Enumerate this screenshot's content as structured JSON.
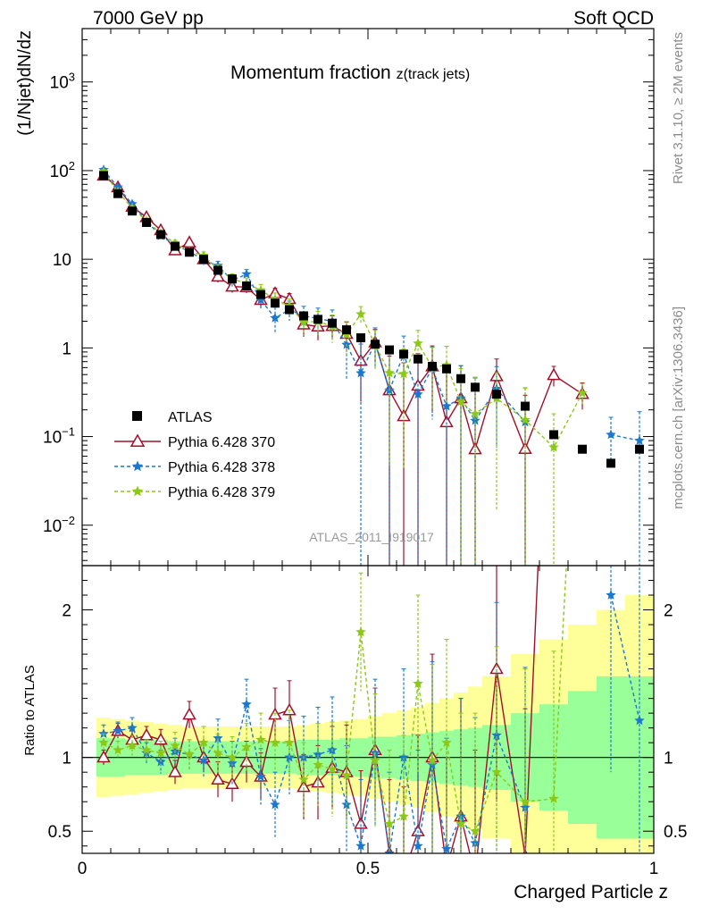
{
  "header": {
    "left": "7000 GeV pp",
    "right": "Soft QCD"
  },
  "side_labels": {
    "rivet": "Rivet 3.1.10, ≥ 2M events",
    "mcplots": "mcplots.cern.ch [arXiv:1306.3436]"
  },
  "watermark": "ATLAS_2011_I919017",
  "colors": {
    "atlas": "#000000",
    "p370": "#a0102a",
    "p378": "#1a78d0",
    "p379": "#8cc818",
    "band_green": "#99ff99",
    "band_yellow": "#ffff99"
  },
  "chart_data": {
    "type": "scatter",
    "title_main": "Momentum fraction ",
    "title_sub": "z(track jets)",
    "xlabel": "Charged Particle z",
    "ylabel_top": "(1/Njet)dN/dz",
    "ylabel_ratio": "Ratio to ATLAS",
    "xlim": [
      0,
      1
    ],
    "ylim_top": [
      0.0035,
      4000
    ],
    "y_scale_top": "log",
    "ylim_ratio": [
      0.35,
      2.3
    ],
    "x_ticks": [
      0,
      0.5,
      1
    ],
    "x_tick_labels": [
      "0",
      "0.5",
      "1"
    ],
    "top_tick_labels": [
      {
        "v": 0.01,
        "base": "10",
        "exp": "−2"
      },
      {
        "v": 0.1,
        "base": "10",
        "exp": "−1"
      },
      {
        "v": 1,
        "base": "1",
        "exp": ""
      },
      {
        "v": 10,
        "base": "10",
        "exp": ""
      },
      {
        "v": 100,
        "base": "10",
        "exp": "2"
      },
      {
        "v": 1000,
        "base": "10",
        "exp": "3"
      }
    ],
    "ratio_ticks": [
      0.5,
      1,
      2
    ],
    "ratio_tick_labels": [
      "0.5",
      "1",
      "2"
    ],
    "legend": [
      "ATLAS",
      "Pythia 6.428 370",
      "Pythia 6.428 378",
      "Pythia 6.428 379"
    ],
    "legend_position": "lower-left",
    "x": [
      0.0375,
      0.0625,
      0.0875,
      0.1125,
      0.1375,
      0.1625,
      0.1875,
      0.2125,
      0.2375,
      0.2625,
      0.2875,
      0.3125,
      0.3375,
      0.3625,
      0.3875,
      0.4125,
      0.4375,
      0.4625,
      0.4875,
      0.5125,
      0.5375,
      0.5625,
      0.5875,
      0.6125,
      0.6375,
      0.6625,
      0.6875,
      0.725,
      0.775,
      0.825,
      0.875,
      0.925,
      0.975
    ],
    "band_edges": [
      0.025,
      0.05,
      0.075,
      0.1,
      0.125,
      0.15,
      0.175,
      0.2,
      0.225,
      0.25,
      0.275,
      0.3,
      0.325,
      0.35,
      0.375,
      0.4,
      0.425,
      0.45,
      0.475,
      0.5,
      0.525,
      0.55,
      0.575,
      0.6,
      0.625,
      0.65,
      0.675,
      0.7,
      0.75,
      0.8,
      0.85,
      0.9,
      0.95,
      1.0
    ],
    "atlas": [
      88,
      55,
      35,
      26,
      19,
      14,
      12,
      10,
      7.5,
      6.0,
      5.0,
      4.0,
      3.2,
      2.7,
      2.3,
      2.1,
      1.9,
      1.6,
      1.3,
      1.1,
      0.95,
      0.85,
      0.75,
      0.62,
      0.58,
      0.45,
      0.36,
      0.3,
      0.22,
      0.105,
      0.072,
      0.05,
      0.072
    ],
    "band_inner": [
      0.13,
      0.13,
      0.12,
      0.12,
      0.12,
      0.11,
      0.11,
      0.11,
      0.11,
      0.11,
      0.11,
      0.11,
      0.11,
      0.11,
      0.12,
      0.12,
      0.12,
      0.13,
      0.13,
      0.14,
      0.14,
      0.15,
      0.16,
      0.17,
      0.18,
      0.19,
      0.2,
      0.22,
      0.3,
      0.36,
      0.45,
      0.55,
      0.55
    ],
    "band_outer": [
      0.27,
      0.26,
      0.25,
      0.24,
      0.23,
      0.22,
      0.21,
      0.21,
      0.21,
      0.21,
      0.21,
      0.21,
      0.21,
      0.21,
      0.22,
      0.23,
      0.24,
      0.25,
      0.26,
      0.28,
      0.3,
      0.32,
      0.34,
      0.37,
      0.4,
      0.44,
      0.48,
      0.55,
      0.7,
      0.8,
      0.9,
      1.0,
      1.1
    ],
    "series": [
      {
        "name": "Pythia 6.428 370",
        "ratio": [
          1.0,
          1.18,
          1.12,
          1.15,
          1.12,
          0.9,
          1.29,
          1.0,
          0.85,
          0.82,
          0.97,
          0.87,
          1.29,
          1.32,
          0.8,
          0.83,
          0.93,
          0.9,
          0.55,
          1.05,
          0.35,
          0.2,
          0.5,
          1.0,
          0.25,
          0.6,
          0.2,
          1.6,
          0.33,
          4.7,
          4.2,
          null,
          null
        ],
        "err": [
          0.05,
          0.05,
          0.06,
          0.06,
          0.07,
          0.08,
          0.09,
          0.1,
          0.12,
          0.12,
          0.14,
          0.16,
          0.18,
          0.2,
          0.22,
          0.25,
          0.28,
          0.32,
          0.36,
          0.42,
          0.5,
          0.6,
          0.65,
          0.7,
          0.75,
          0.8,
          0.85,
          0.9,
          1.0,
          1.2,
          1.4,
          null,
          null
        ]
      },
      {
        "name": "Pythia 6.428 378",
        "ratio": [
          1.16,
          1.18,
          1.2,
          1.03,
          0.97,
          1.04,
          1.02,
          0.98,
          1.13,
          0.96,
          1.36,
          0.87,
          0.68,
          1.0,
          1.0,
          1.02,
          1.05,
          0.68,
          0.4,
          1.03,
          0.35,
          1.0,
          0.4,
          0.95,
          0.38,
          0.6,
          0.42,
          1.15,
          0.66,
          null,
          null,
          2.1,
          1.25
        ],
        "err": [
          0.06,
          0.06,
          0.07,
          0.07,
          0.08,
          0.09,
          0.1,
          0.12,
          0.13,
          0.15,
          0.17,
          0.19,
          0.22,
          0.25,
          0.28,
          0.32,
          0.36,
          0.4,
          0.45,
          0.5,
          0.55,
          0.6,
          0.65,
          0.7,
          0.75,
          0.8,
          0.85,
          0.9,
          0.95,
          null,
          null,
          1.2,
          1.4
        ]
      },
      {
        "name": "Pythia 6.428 379",
        "ratio": [
          1.1,
          1.05,
          1.08,
          1.05,
          1.03,
          1.08,
          1.02,
          1.1,
          1.03,
          1.0,
          1.07,
          1.12,
          1.1,
          1.1,
          0.85,
          0.95,
          0.92,
          0.88,
          1.85,
          0.98,
          0.55,
          0.6,
          1.5,
          0.98,
          1.1,
          0.55,
          0.5,
          0.9,
          0.7,
          0.72,
          4.3,
          null,
          null
        ],
        "err": [
          0.06,
          0.06,
          0.07,
          0.07,
          0.08,
          0.09,
          0.1,
          0.11,
          0.13,
          0.14,
          0.16,
          0.18,
          0.2,
          0.22,
          0.25,
          0.28,
          0.32,
          0.36,
          0.4,
          0.45,
          0.5,
          0.55,
          0.6,
          0.65,
          0.7,
          0.75,
          0.8,
          0.85,
          0.9,
          1.0,
          1.2,
          null,
          null
        ]
      }
    ]
  }
}
